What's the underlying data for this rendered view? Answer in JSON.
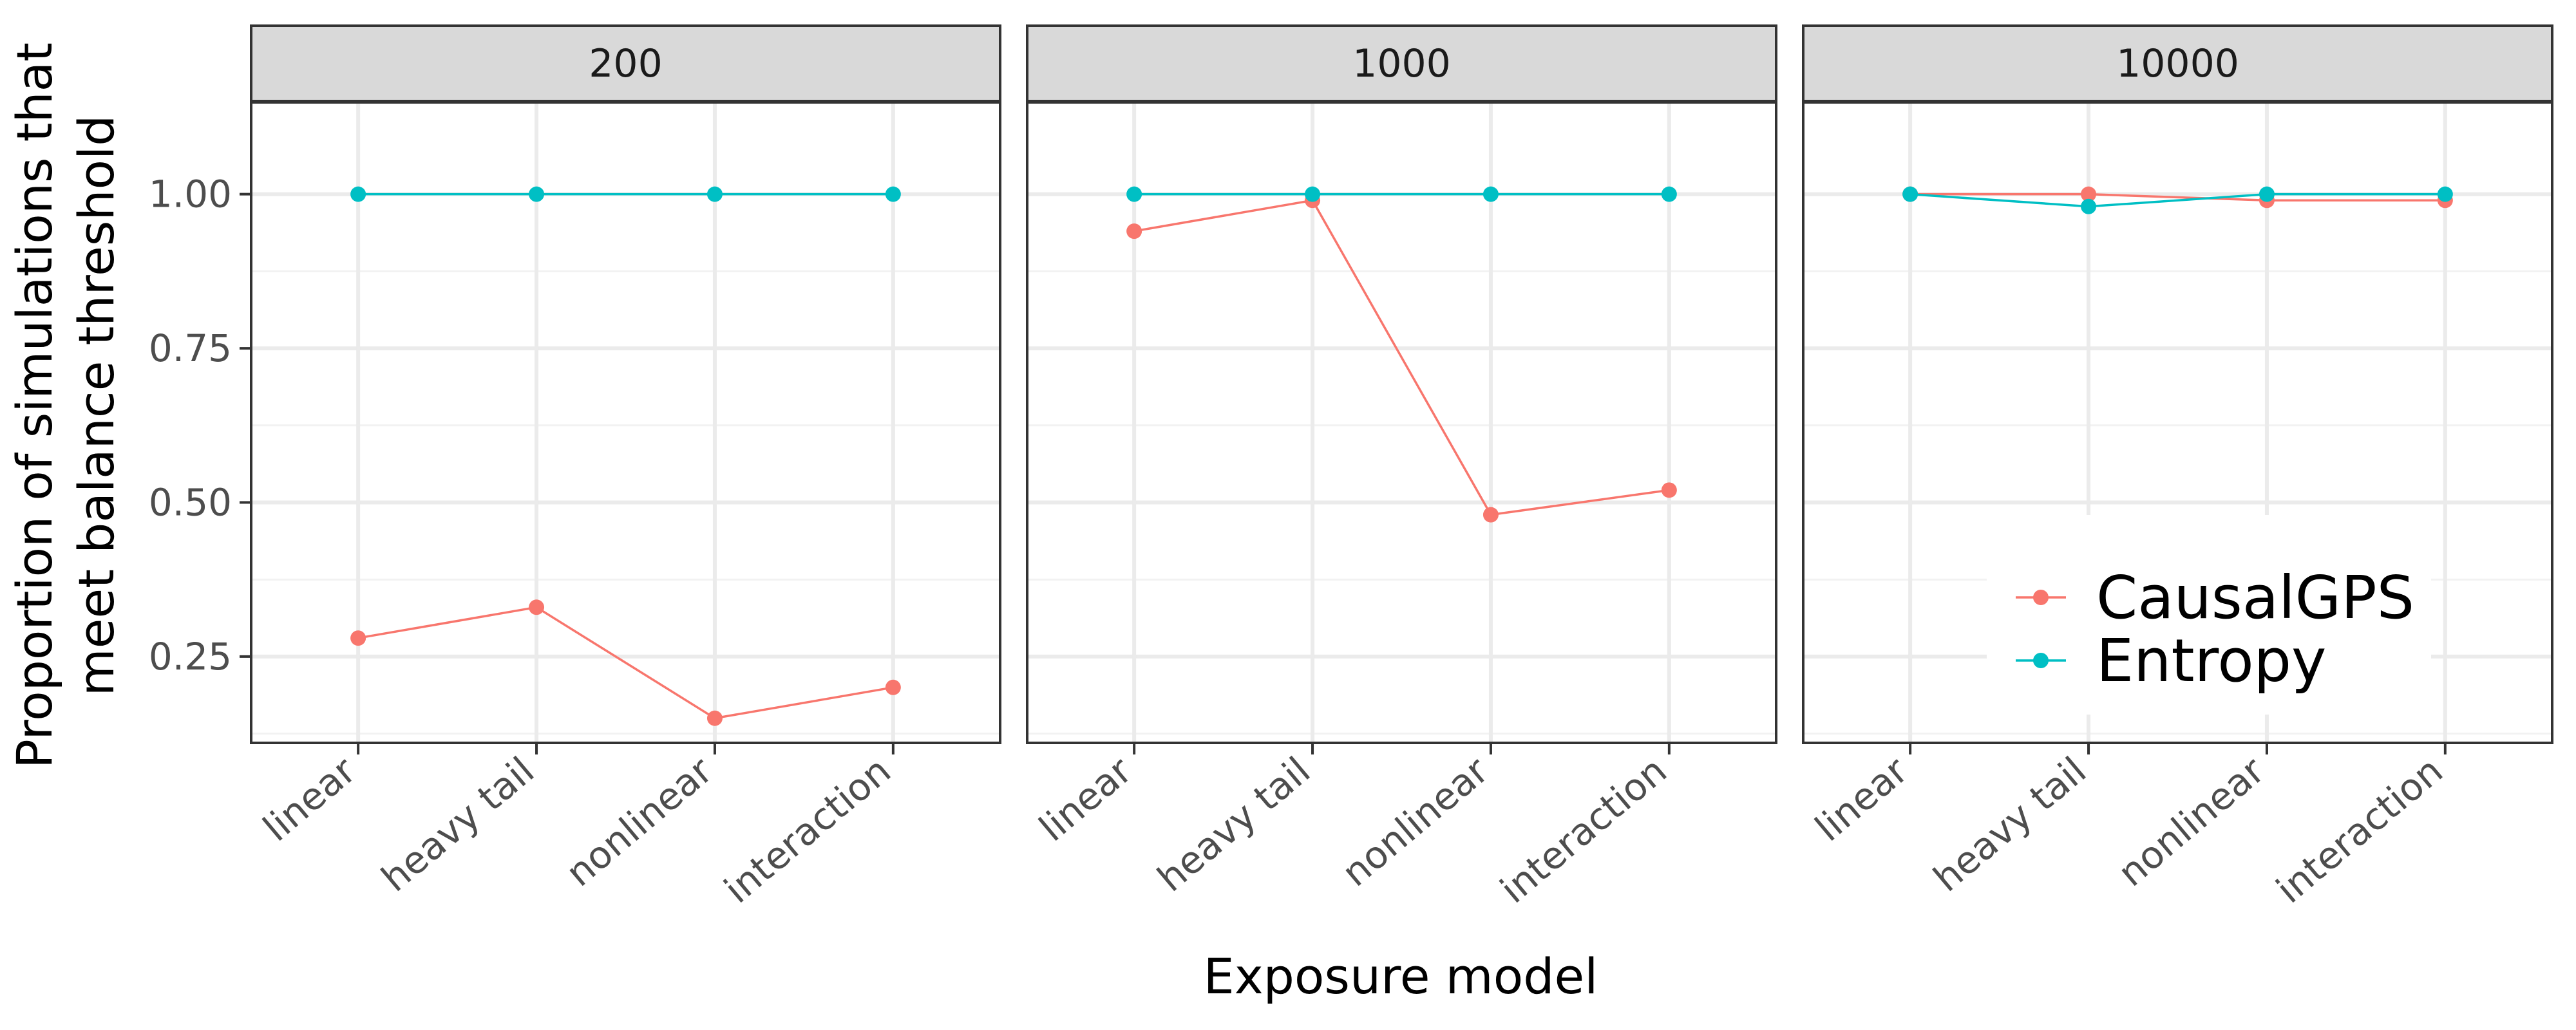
{
  "chart_data": {
    "type": "line",
    "facet_labels": [
      "200",
      "1000",
      "10000"
    ],
    "categories": [
      "linear",
      "heavy tail",
      "nonlinear",
      "interaction"
    ],
    "xlabel": "Exposure model",
    "ylabel_lines": [
      "Proportion of simulations that",
      "meet balance threshold"
    ],
    "yticks": [
      "0.25",
      "0.50",
      "0.75",
      "1.00"
    ],
    "ylim": [
      0.11,
      1.15
    ],
    "grid": true,
    "legend_position": "bottom-right",
    "series": [
      {
        "name": "CausalGPS",
        "color": "#F8766D",
        "values": [
          [
            0.28,
            0.33,
            0.15,
            0.2
          ],
          [
            0.94,
            0.99,
            0.48,
            0.52
          ],
          [
            1.0,
            1.0,
            0.99,
            0.99
          ]
        ]
      },
      {
        "name": "Entropy",
        "color": "#00BFC4",
        "values": [
          [
            1.0,
            1.0,
            1.0,
            1.0
          ],
          [
            1.0,
            1.0,
            1.0,
            1.0
          ],
          [
            1.0,
            0.98,
            1.0,
            1.0
          ]
        ]
      }
    ]
  }
}
